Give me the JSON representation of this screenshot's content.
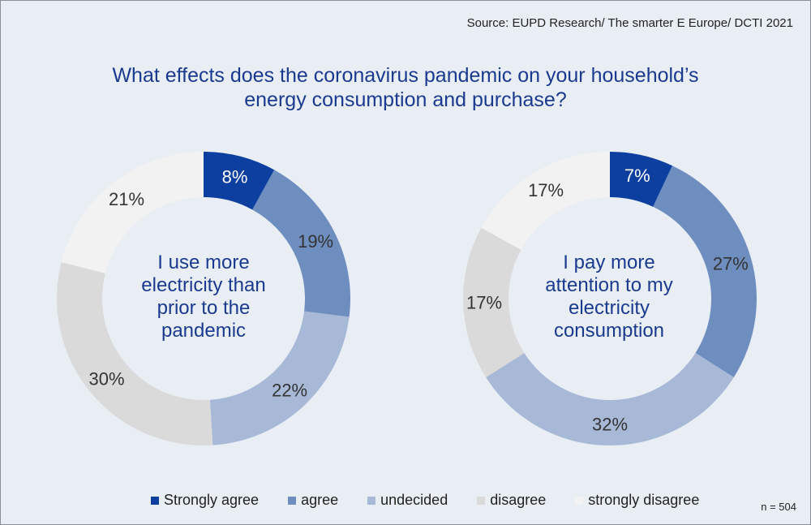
{
  "source": "Source: EUPD Research/ The smarter E Europe/ DCTI 2021",
  "title_line1": "What effects does the coronavirus pandemic on your household’s",
  "title_line2": "energy consumption and purchase?",
  "n_label": "n = 504",
  "colors": [
    "#0d3fa0",
    "#6f8ec0",
    "#a8b9d8",
    "#dadada",
    "#f2f2f2"
  ],
  "chart_data": [
    {
      "type": "pie",
      "center_lines": [
        "I use more",
        "electricity than",
        "prior to the",
        "pandemic"
      ],
      "categories": [
        "Strongly agree",
        "agree",
        "undecided",
        "disagree",
        "strongly disagree"
      ],
      "values": [
        8,
        19,
        22,
        30,
        21
      ],
      "labels": [
        "8%",
        "19%",
        "22%",
        "30%",
        "21%"
      ]
    },
    {
      "type": "pie",
      "center_lines": [
        "I pay more",
        "attention to my",
        "electricity",
        "consumption"
      ],
      "categories": [
        "Strongly agree",
        "agree",
        "undecided",
        "disagree",
        "strongly disagree"
      ],
      "values": [
        7,
        27,
        32,
        17,
        17
      ],
      "labels": [
        "7%",
        "27%",
        "32%",
        "17%",
        "17%"
      ]
    }
  ],
  "legend": [
    "Strongly agree",
    "agree",
    "undecided",
    "disagree",
    "strongly disagree"
  ]
}
